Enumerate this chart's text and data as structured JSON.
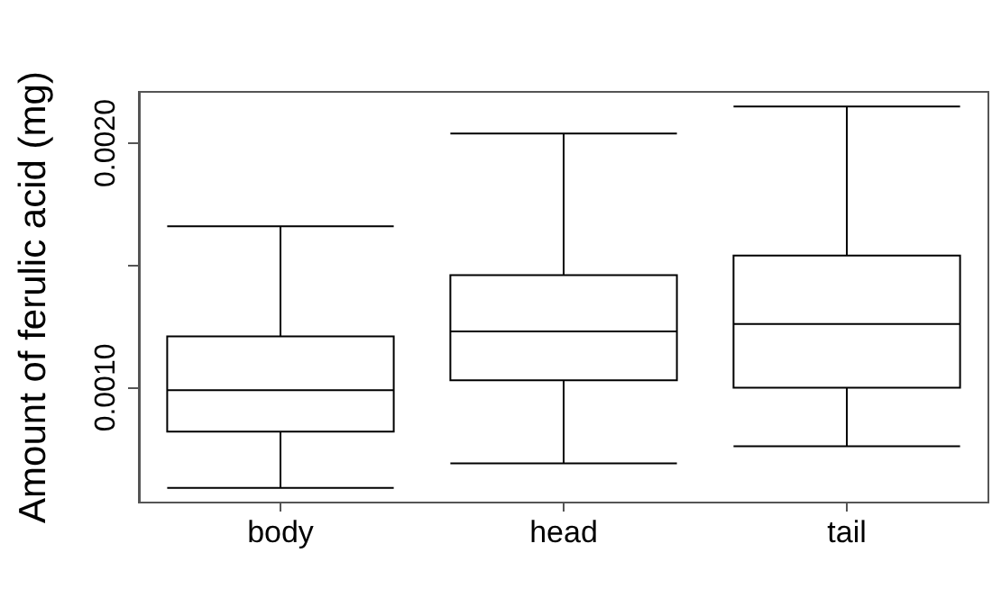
{
  "chart_data": {
    "type": "box",
    "ylabel": "Amount of ferulic acid (mg)",
    "categories": [
      "body",
      "head",
      "tail"
    ],
    "boxes": [
      {
        "low": 0.00059,
        "q1": 0.00082,
        "median": 0.00099,
        "q3": 0.00121,
        "high": 0.00166
      },
      {
        "low": 0.00069,
        "q1": 0.00103,
        "median": 0.00123,
        "q3": 0.00146,
        "high": 0.00204
      },
      {
        "low": 0.00076,
        "q1": 0.001,
        "median": 0.00126,
        "q3": 0.00154,
        "high": 0.00215
      }
    ],
    "color": "#000000",
    "ylim": [
      0.00053,
      0.00221
    ],
    "yticks": [
      {
        "value": 0.001,
        "label": "0.0010"
      },
      {
        "value": 0.0015,
        "label": null
      },
      {
        "value": 0.002,
        "label": "0.0020"
      }
    ],
    "grid": false
  }
}
